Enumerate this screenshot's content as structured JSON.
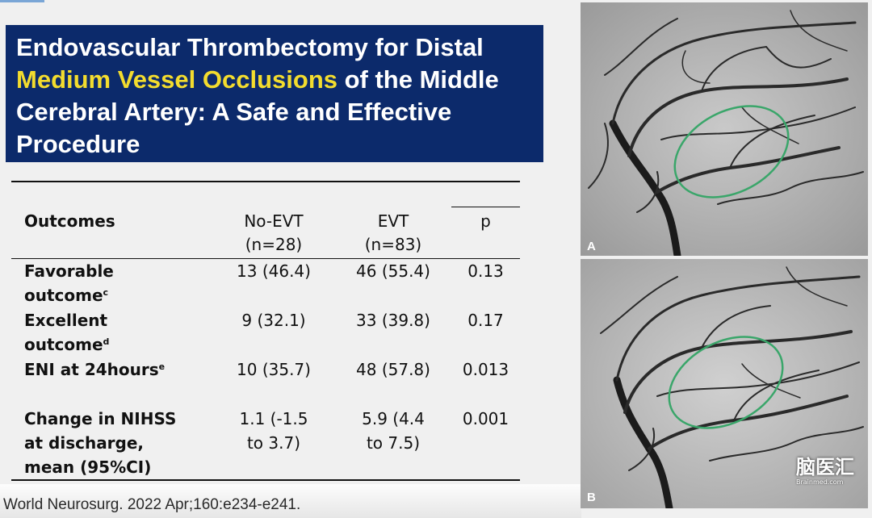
{
  "slide": {
    "title_line1": "Endovascular Thrombectomy for Distal",
    "title_highlight": "Medium Vessel Occlusions",
    "title_after_highlight": " of the Middle",
    "title_line3": "Cerebral Artery: A Safe and Effective",
    "title_line4": "Procedure",
    "accent_color": "#f3dc2e",
    "banner_color": "#0c2a6b"
  },
  "table": {
    "headers": {
      "outcomes": "Outcomes",
      "no_evt": "No-EVT",
      "no_evt_n": "(n=28)",
      "evt": "EVT",
      "evt_n": "(n=83)",
      "p": "p"
    },
    "rows": [
      {
        "label1": "Favorable",
        "label2": "outcome",
        "label2_sup": "c",
        "no_evt": "13 (46.4)",
        "evt": "46 (55.4)",
        "p": "0.13"
      },
      {
        "label1": "Excellent",
        "label2": "outcome",
        "label2_sup": "d",
        "no_evt": "9 (32.1)",
        "evt": "33 (39.8)",
        "p": "0.17"
      },
      {
        "label1": "ENI at 24hours",
        "label1_sup": "e",
        "no_evt": "10 (35.7)",
        "evt": "48 (57.8)",
        "p": "0.013"
      },
      {
        "label1": "Change in NIHSS",
        "label2": "at discharge,",
        "label3": "mean (95%CI)",
        "no_evt1": "1.1 (-1.5",
        "no_evt2": "to 3.7)",
        "evt1": "5.9 (4.4",
        "evt2": "to 7.5)",
        "p": "0.001"
      }
    ]
  },
  "citation": "World Neurosurg. 2022 Apr;160:e234-e241.",
  "images": {
    "panel_a_label": "A",
    "panel_b_label": "B",
    "roi_color": "#3aa66a"
  },
  "watermark": {
    "main": "脑医汇",
    "sub": "Brainmed.com"
  }
}
